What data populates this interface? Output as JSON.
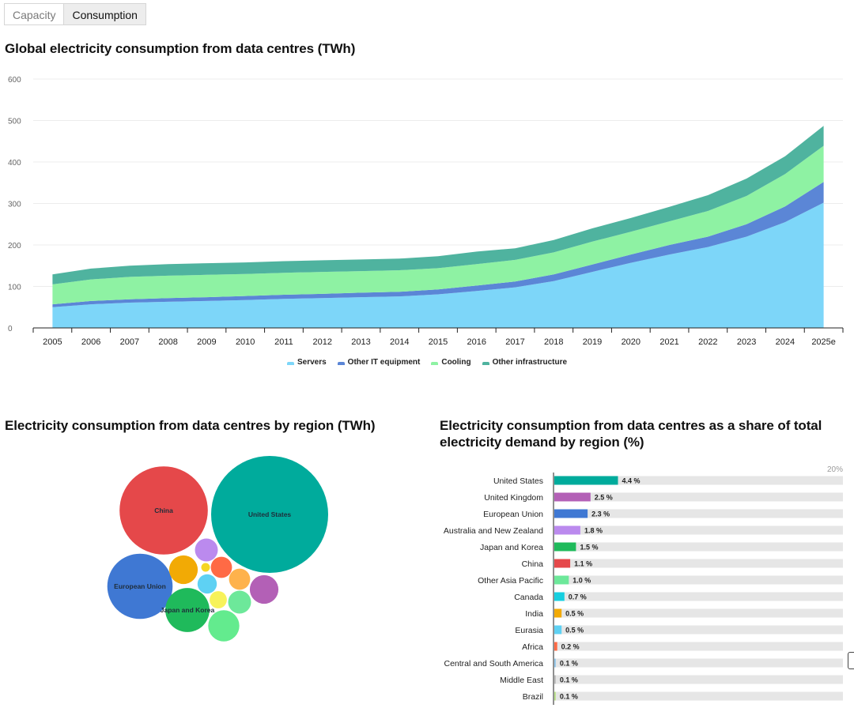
{
  "tabs": [
    {
      "label": "Capacity",
      "active": false
    },
    {
      "label": "Consumption",
      "active": true
    }
  ],
  "colors": {
    "servers": "#7dd6f9",
    "other_it": "#5b86d6",
    "cooling": "#8ef2a3",
    "other_infra": "#4fb39f",
    "bar_track": "#e6e6e6"
  },
  "chart_data": [
    {
      "type": "area",
      "stacked": true,
      "title": "Global electricity consumption from data centres (TWh)",
      "xlabel": "",
      "ylabel": "",
      "ylim": [
        0,
        600
      ],
      "yticks": [
        0,
        100,
        200,
        300,
        400,
        500,
        600
      ],
      "grid": true,
      "legend_position": "bottom",
      "categories": [
        "2005",
        "2006",
        "2007",
        "2008",
        "2009",
        "2010",
        "2011",
        "2012",
        "2013",
        "2014",
        "2015",
        "2016",
        "2017",
        "2018",
        "2019",
        "2020",
        "2021",
        "2022",
        "2023",
        "2024",
        "2025e"
      ],
      "series": [
        {
          "name": "Servers",
          "color": "#7dd6f9",
          "values": [
            50,
            57,
            61,
            63,
            65,
            67,
            70,
            72,
            74,
            76,
            81,
            89,
            98,
            113,
            135,
            157,
            177,
            195,
            220,
            255,
            302
          ]
        },
        {
          "name": "Other IT equipment",
          "color": "#5b86d6",
          "values": [
            7,
            8,
            8,
            9,
            9,
            10,
            10,
            10,
            11,
            11,
            12,
            13,
            14,
            16,
            18,
            20,
            23,
            25,
            30,
            38,
            50
          ]
        },
        {
          "name": "Cooling",
          "color": "#8ef2a3",
          "values": [
            48,
            52,
            54,
            54,
            54,
            53,
            53,
            53,
            52,
            52,
            51,
            52,
            52,
            53,
            55,
            55,
            57,
            62,
            68,
            78,
            87
          ]
        },
        {
          "name": "Other infrastructure",
          "color": "#4fb39f",
          "values": [
            24,
            26,
            27,
            28,
            28,
            28,
            28,
            28,
            28,
            28,
            29,
            30,
            28,
            30,
            32,
            33,
            35,
            38,
            42,
            43,
            48
          ]
        }
      ]
    },
    {
      "type": "bubble",
      "title": "Electricity consumption from data centres by region (TWh)",
      "points": [
        {
          "label": "United States",
          "value": 183,
          "color": "#00ab9c",
          "show_label": true
        },
        {
          "label": "China",
          "value": 104,
          "color": "#e5484a",
          "show_label": true
        },
        {
          "label": "European Union",
          "value": 57,
          "color": "#3f78d3",
          "show_label": true
        },
        {
          "label": "Japan and Korea",
          "value": 26,
          "color": "#1fba5b",
          "show_label": true
        },
        {
          "label": "",
          "value": 13,
          "color": "#63eb8e",
          "show_label": false
        },
        {
          "label": "",
          "value": 11,
          "color": "#f2aa05",
          "show_label": false
        },
        {
          "label": "",
          "value": 11,
          "color": "#b360b6",
          "show_label": false
        },
        {
          "label": "",
          "value": 7,
          "color": "#bb8aee",
          "show_label": false
        },
        {
          "label": "",
          "value": 7,
          "color": "#6de89a",
          "show_label": false
        },
        {
          "label": "",
          "value": 6,
          "color": "#ff6a45",
          "show_label": false
        },
        {
          "label": "",
          "value": 6,
          "color": "#feb24c",
          "show_label": false
        },
        {
          "label": "",
          "value": 5,
          "color": "#5ed1f3",
          "show_label": false
        },
        {
          "label": "",
          "value": 4,
          "color": "#f7f25a",
          "show_label": false
        },
        {
          "label": "",
          "value": 1,
          "color": "#f5d624",
          "show_label": false
        }
      ]
    },
    {
      "type": "bar",
      "orientation": "horizontal",
      "title": "Electricity consumption from data centres as a share of total electricity demand by region (%)",
      "xlim": [
        0,
        20
      ],
      "xmax_label": "20%",
      "unit": "%",
      "categories": [
        "United States",
        "United Kingdom",
        "European Union",
        "Australia and New Zealand",
        "Japan and Korea",
        "China",
        "Other Asia Pacific",
        "Canada",
        "India",
        "Eurasia",
        "Africa",
        "Central and South America",
        "Middle East",
        "Brazil"
      ],
      "values": [
        4.4,
        2.5,
        2.3,
        1.8,
        1.5,
        1.1,
        1.0,
        0.7,
        0.5,
        0.5,
        0.2,
        0.1,
        0.1,
        0.1
      ],
      "value_labels": [
        "4.4 %",
        "2.5 %",
        "2.3 %",
        "1.8 %",
        "1.5 %",
        "1.1 %",
        "1.0 %",
        "0.7 %",
        "0.5 %",
        "0.5 %",
        "0.2 %",
        "0.1 %",
        "0.1 %",
        "0.1 %"
      ],
      "colors": [
        "#00ab9c",
        "#b360b6",
        "#3f78d3",
        "#bb8aee",
        "#1fba5b",
        "#e5484a",
        "#6de89a",
        "#16cfe0",
        "#f2aa05",
        "#5ed1f3",
        "#ff6a45",
        "#8fc5ea",
        "#bbbbbb",
        "#b8e186"
      ]
    }
  ]
}
